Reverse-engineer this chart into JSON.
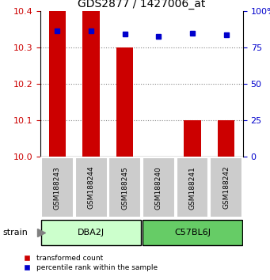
{
  "title": "GDS2877 / 1427006_at",
  "samples": [
    "GSM188243",
    "GSM188244",
    "GSM188245",
    "GSM188240",
    "GSM188241",
    "GSM188242"
  ],
  "group_labels": [
    "DBA2J",
    "C57BL6J"
  ],
  "group_colors": [
    "#ccffcc",
    "#66cc66"
  ],
  "bar_bottom": 10.0,
  "bar_tops": [
    10.4,
    10.4,
    10.3,
    10.0,
    10.1,
    10.1
  ],
  "percentile_values": [
    10.345,
    10.345,
    10.338,
    10.33,
    10.34,
    10.335
  ],
  "ylim_left": [
    10.0,
    10.4
  ],
  "ylim_right": [
    0,
    100
  ],
  "yticks_left": [
    10.0,
    10.1,
    10.2,
    10.3,
    10.4
  ],
  "yticks_right": [
    0,
    25,
    50,
    75,
    100
  ],
  "ytick_labels_right": [
    "0",
    "25",
    "50",
    "75",
    "100%"
  ],
  "grid_yticks": [
    10.1,
    10.2,
    10.3
  ],
  "bar_color": "#cc0000",
  "percentile_color": "#0000cc",
  "sample_box_color": "#cccccc",
  "left_label_color": "#cc0000",
  "right_label_color": "#0000cc",
  "grid_color": "#888888",
  "legend_labels": [
    "transformed count",
    "percentile rank within the sample"
  ]
}
